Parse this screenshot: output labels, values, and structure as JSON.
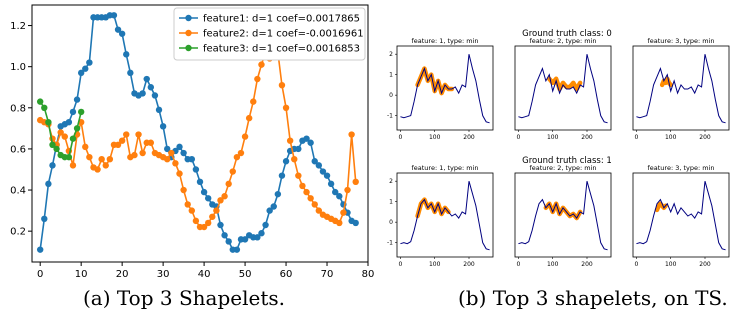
{
  "captions": {
    "a": "(a) Top 3 Shapelets.",
    "b": "(b) Top 3 shapelets, on TS."
  },
  "chart_data": [
    {
      "type": "line",
      "xlim": [
        -2,
        80
      ],
      "ylim": [
        0.05,
        1.3
      ],
      "xticks": [
        "0",
        "10",
        "20",
        "30",
        "40",
        "50",
        "60",
        "70",
        "80"
      ],
      "yticks": [
        "0.2",
        "0.4",
        "0.6",
        "0.8",
        "1.0",
        "1.2"
      ],
      "grid": false,
      "legend_position": "top-right",
      "series": [
        {
          "name": "feature1: d=1 coef=0.0017865",
          "color": "#1f77b4",
          "marker": "circle",
          "x": [
            0,
            1,
            2,
            3,
            4,
            5,
            6,
            7,
            8,
            9,
            10,
            11,
            12,
            13,
            14,
            15,
            16,
            17,
            18,
            19,
            20,
            21,
            22,
            23,
            24,
            25,
            26,
            27,
            28,
            29,
            30,
            31,
            32,
            33,
            34,
            35,
            36,
            37,
            38,
            39,
            40,
            41,
            42,
            43,
            44,
            45,
            46,
            47,
            48,
            49,
            50,
            51,
            52,
            53,
            54,
            55,
            56,
            57,
            58,
            59,
            60,
            61,
            62,
            63,
            64,
            65,
            66,
            67,
            68,
            69,
            70,
            71,
            72,
            73,
            74,
            75,
            76,
            77
          ],
          "y": [
            0.11,
            0.26,
            0.43,
            0.52,
            0.62,
            0.71,
            0.72,
            0.73,
            0.78,
            0.84,
            0.97,
            0.99,
            1.02,
            1.24,
            1.24,
            1.24,
            1.24,
            1.25,
            1.25,
            1.18,
            1.16,
            1.06,
            0.97,
            0.87,
            0.86,
            0.87,
            0.94,
            0.9,
            0.86,
            0.79,
            0.71,
            0.6,
            0.56,
            0.59,
            0.61,
            0.58,
            0.55,
            0.55,
            0.5,
            0.44,
            0.39,
            0.36,
            0.33,
            0.32,
            0.23,
            0.18,
            0.15,
            0.11,
            0.11,
            0.16,
            0.16,
            0.18,
            0.17,
            0.17,
            0.19,
            0.23,
            0.3,
            0.32,
            0.38,
            0.47,
            0.54,
            0.59,
            0.6,
            0.6,
            0.64,
            0.65,
            0.63,
            0.54,
            0.52,
            0.49,
            0.47,
            0.43,
            0.39,
            0.37,
            0.33,
            0.29,
            0.25,
            0.24
          ]
        },
        {
          "name": "feature2: d=1 coef=-0.0016961",
          "color": "#ff7f0e",
          "marker": "circle",
          "x": [
            0,
            1,
            2,
            3,
            4,
            5,
            6,
            7,
            8,
            9,
            10,
            11,
            12,
            13,
            14,
            15,
            16,
            17,
            18,
            19,
            20,
            21,
            22,
            23,
            24,
            25,
            26,
            27,
            28,
            29,
            30,
            31,
            32,
            33,
            34,
            35,
            36,
            37,
            38,
            39,
            40,
            41,
            42,
            43,
            44,
            45,
            46,
            47,
            48,
            49,
            50,
            51,
            52,
            53,
            54,
            55,
            56,
            57,
            58,
            59,
            60,
            61,
            62,
            63,
            64,
            65,
            66,
            67,
            68,
            69,
            70,
            71,
            72,
            73,
            74,
            75,
            76,
            77
          ],
          "y": [
            0.74,
            0.73,
            0.72,
            0.65,
            0.62,
            0.68,
            0.66,
            0.59,
            0.52,
            0.67,
            0.73,
            0.61,
            0.56,
            0.51,
            0.5,
            0.55,
            0.52,
            0.55,
            0.62,
            0.62,
            0.64,
            0.67,
            0.56,
            0.57,
            0.67,
            0.58,
            0.63,
            0.63,
            0.58,
            0.57,
            0.56,
            0.55,
            0.58,
            0.53,
            0.48,
            0.4,
            0.33,
            0.3,
            0.25,
            0.22,
            0.22,
            0.24,
            0.27,
            0.3,
            0.35,
            0.37,
            0.43,
            0.49,
            0.56,
            0.58,
            0.66,
            0.75,
            0.83,
            0.94,
            1.01,
            1.07,
            1.04,
            1.1,
            1.07,
            0.91,
            0.8,
            0.64,
            0.55,
            0.47,
            0.42,
            0.39,
            0.36,
            0.33,
            0.3,
            0.28,
            0.27,
            0.26,
            0.25,
            0.24,
            0.29,
            0.4,
            0.67,
            0.44
          ]
        },
        {
          "name": "feature3: d=1 coef=0.0016853",
          "color": "#2ca02c",
          "marker": "circle",
          "x": [
            0,
            1,
            2,
            3,
            4,
            5,
            6,
            7,
            8,
            9,
            10
          ],
          "y": [
            0.83,
            0.8,
            0.73,
            0.62,
            0.6,
            0.57,
            0.56,
            0.56,
            0.65,
            0.7,
            0.78
          ]
        }
      ]
    },
    {
      "type": "line",
      "panel_titles": [
        "feature: 1, type: min",
        "feature: 2, type: min",
        "feature: 3, type: min"
      ],
      "row_titles": [
        "Ground truth class: 0",
        "Ground truth class: 1"
      ],
      "xlim": [
        -10,
        270
      ],
      "ylim": [
        -1.7,
        2.4
      ],
      "xticks": [
        "0",
        "100",
        "200"
      ],
      "yticks": [
        "-1",
        "0",
        "1",
        "2"
      ],
      "series_colors": {
        "time_series": "#000080",
        "shapelet": "#ff8c00"
      },
      "x": [
        0,
        10,
        20,
        30,
        40,
        50,
        60,
        70,
        80,
        90,
        100,
        110,
        120,
        130,
        140,
        150,
        160,
        170,
        180,
        190,
        200,
        210,
        220,
        230,
        240,
        250,
        260
      ],
      "rows": [
        {
          "time_series": [
            -1.05,
            -1.1,
            -1.05,
            -1.0,
            -0.3,
            0.5,
            0.9,
            1.3,
            0.7,
            1.0,
            0.2,
            0.7,
            0.1,
            0.5,
            0.3,
            0.3,
            0.4,
            0.1,
            0.5,
            0.4,
            2.0,
            1.3,
            0.7,
            -0.2,
            -1.0,
            -1.3,
            -1.35
          ],
          "shapelets": [
            {
              "x": [
                50,
                60,
                70,
                80,
                90,
                100,
                110,
                120,
                130,
                140,
                150
              ],
              "y": [
                0.5,
                0.9,
                1.3,
                0.7,
                1.0,
                0.2,
                0.7,
                0.1,
                0.5,
                0.3,
                0.3
              ]
            },
            {
              "x": [
                90,
                100,
                110,
                120,
                130,
                140,
                150,
                160,
                170,
                180
              ],
              "y": [
                0.8,
                0.6,
                0.8,
                0.3,
                0.6,
                0.4,
                0.4,
                0.6,
                0.3,
                0.6
              ]
            },
            {
              "x": [
                75,
                80,
                85,
                90,
                95,
                100
              ],
              "y": [
                0.5,
                0.7,
                0.6,
                0.8,
                0.6,
                0.5
              ]
            }
          ]
        },
        {
          "time_series": [
            -1.05,
            -1.0,
            -1.05,
            -0.95,
            -0.4,
            0.3,
            0.9,
            1.1,
            0.7,
            0.9,
            0.5,
            0.9,
            0.4,
            0.7,
            0.5,
            0.3,
            0.4,
            0.2,
            0.5,
            0.4,
            2.0,
            1.4,
            0.8,
            -0.1,
            -1.0,
            -1.3,
            -1.35
          ],
          "shapelets": [
            {
              "x": [
                50,
                60,
                70,
                80,
                90,
                100,
                110,
                120,
                130,
                140
              ],
              "y": [
                0.3,
                0.9,
                1.1,
                0.7,
                0.9,
                0.5,
                0.9,
                0.4,
                0.7,
                0.5
              ]
            },
            {
              "x": [
                80,
                90,
                100,
                110,
                120,
                130,
                140,
                150,
                160,
                170,
                180
              ],
              "y": [
                0.7,
                0.9,
                0.5,
                0.9,
                0.4,
                0.7,
                0.5,
                0.3,
                0.4,
                0.2,
                0.5
              ]
            },
            {
              "x": [
                60,
                65,
                70,
                75,
                80,
                85
              ],
              "y": [
                0.6,
                0.8,
                0.9,
                0.8,
                0.7,
                0.8
              ]
            }
          ]
        }
      ]
    }
  ]
}
